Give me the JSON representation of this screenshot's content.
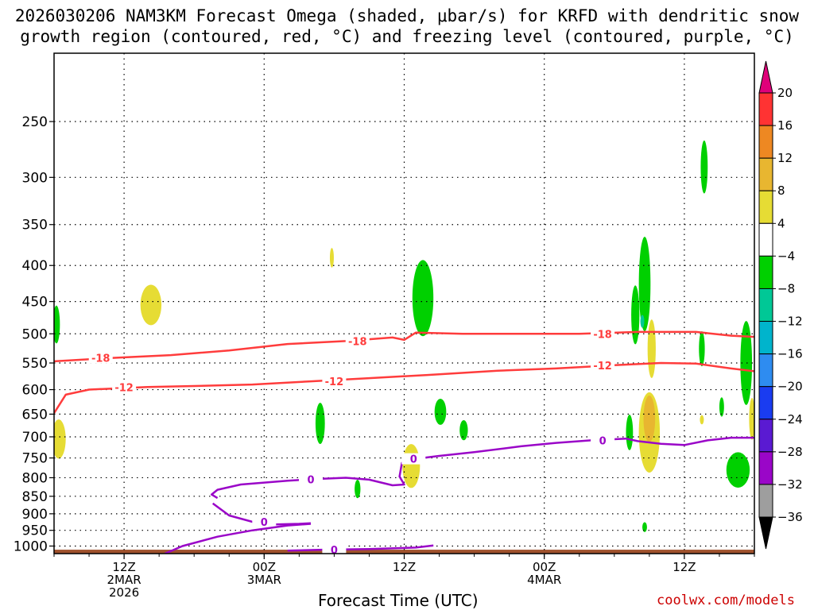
{
  "title": {
    "line1": "2026030206 NAM3KM Forecast Omega (shaded, μbar/s) for KRFD with dendritic snow",
    "line2": "growth region (contoured, red, °C) and freezing level (contoured, purple, °C)"
  },
  "credit": "coolwx.com/models",
  "chart_data": {
    "type": "time-height cross-section",
    "title": "2026030206 NAM3KM Forecast Omega (shaded, μbar/s) for KRFD with dendritic snow growth region (contoured, red, °C) and freezing level (contoured, purple, °C)",
    "xlabel": "Forecast Time (UTC)",
    "ylabel": "",
    "x_range_hours": [
      0,
      60
    ],
    "y_range_hpa": [
      1025,
      200
    ],
    "y_scale": "log-pressure",
    "y_ticks": [
      250,
      300,
      350,
      400,
      450,
      500,
      550,
      600,
      650,
      700,
      750,
      800,
      850,
      900,
      950,
      1000
    ],
    "x_ticks": [
      {
        "hour": 6,
        "lines": [
          "12Z",
          "2MAR",
          "2026"
        ]
      },
      {
        "hour": 18,
        "lines": [
          "00Z",
          "3MAR"
        ]
      },
      {
        "hour": 30,
        "lines": [
          "12Z"
        ]
      },
      {
        "hour": 42,
        "lines": [
          "00Z",
          "4MAR"
        ]
      },
      {
        "hour": 54,
        "lines": [
          "12Z"
        ]
      }
    ],
    "grid": true,
    "colorbar": {
      "levels": [
        20,
        16,
        12,
        8,
        4,
        -4,
        -8,
        -12,
        -16,
        -20,
        -24,
        -28,
        -32,
        -36
      ],
      "colors": [
        "#ff3333",
        "#ee8822",
        "#e8b630",
        "#e6dc34",
        "#ffffff",
        "#00d000",
        "#00c896",
        "#00b4cc",
        "#2e8cf0",
        "#1a3cf0",
        "#5a1ad2",
        "#9a06c8",
        "#9e9e9e"
      ],
      "top_color": "#e0007a",
      "bottom_color": "#000000"
    },
    "contours": [
      {
        "name": "-18",
        "color": "#ff3c3c",
        "label": "-18",
        "points": [
          [
            0,
            547
          ],
          [
            5,
            541
          ],
          [
            10,
            536
          ],
          [
            15,
            528
          ],
          [
            20,
            517
          ],
          [
            25,
            512
          ],
          [
            29,
            506
          ],
          [
            30,
            510
          ],
          [
            31,
            498
          ],
          [
            35,
            500
          ],
          [
            40,
            500
          ],
          [
            45,
            500
          ],
          [
            50,
            497
          ],
          [
            55,
            497
          ],
          [
            58,
            503
          ],
          [
            60,
            505
          ]
        ],
        "labels_at": [
          4,
          26,
          47
        ]
      },
      {
        "name": "-12",
        "color": "#ff3c3c",
        "label": "-12",
        "points": [
          [
            0,
            648
          ],
          [
            1,
            610
          ],
          [
            3,
            600
          ],
          [
            8,
            595
          ],
          [
            12,
            593
          ],
          [
            17,
            590
          ],
          [
            22,
            584
          ],
          [
            27,
            578
          ],
          [
            32,
            572
          ],
          [
            38,
            564
          ],
          [
            43,
            560
          ],
          [
            48,
            554
          ],
          [
            52,
            550
          ],
          [
            55,
            551
          ],
          [
            58,
            560
          ],
          [
            60,
            565
          ]
        ],
        "labels_at": [
          6,
          24,
          47
        ]
      },
      {
        "name": "0-upper",
        "color": "#9a06c8",
        "label": "0",
        "points": [
          [
            14,
            855
          ],
          [
            13.5,
            845
          ],
          [
            14,
            832
          ],
          [
            16,
            818
          ],
          [
            20,
            808
          ],
          [
            22,
            804
          ],
          [
            25,
            800
          ],
          [
            27,
            805
          ],
          [
            29,
            820
          ],
          [
            30,
            818
          ],
          [
            29.6,
            797
          ],
          [
            29.8,
            762
          ],
          [
            31,
            752
          ],
          [
            33,
            745
          ],
          [
            36,
            736
          ],
          [
            40,
            722
          ],
          [
            43,
            714
          ],
          [
            46,
            708
          ],
          [
            49,
            704
          ],
          [
            50,
            710
          ],
          [
            52,
            716
          ],
          [
            54,
            719
          ],
          [
            56,
            708
          ],
          [
            58,
            702
          ],
          [
            60,
            702
          ]
        ],
        "labels_at": [
          22,
          30.8,
          47
        ]
      },
      {
        "name": "0-mid",
        "color": "#9a06c8",
        "label": "0",
        "points": [
          [
            13.6,
            870
          ],
          [
            15,
            905
          ],
          [
            17,
            924
          ],
          [
            19,
            932
          ],
          [
            21,
            930
          ],
          [
            22,
            928
          ]
        ],
        "labels_at": [
          18
        ]
      },
      {
        "name": "0-lower",
        "color": "#9a06c8",
        "label": "0",
        "points": [
          [
            9.5,
            1025
          ],
          [
            11,
            1000
          ],
          [
            14,
            970
          ],
          [
            17,
            950
          ],
          [
            20,
            935
          ],
          [
            22,
            930
          ]
        ],
        "labels_at": []
      },
      {
        "name": "0-bottom",
        "color": "#9a06c8",
        "label": "0",
        "points": [
          [
            20,
            1015
          ],
          [
            23,
            1012
          ],
          [
            27,
            1010
          ],
          [
            31,
            1005
          ],
          [
            32.5,
            998
          ]
        ],
        "labels_at": [
          24
        ]
      }
    ],
    "shaded_regions": [
      {
        "value": 6,
        "color": "#e6dc34",
        "center": [
          8.3,
          455
        ],
        "size": [
          1.8,
          60
        ]
      },
      {
        "value": 6,
        "color": "#e6dc34",
        "center": [
          0.4,
          705
        ],
        "size": [
          1.2,
          90
        ]
      },
      {
        "value": 6,
        "color": "#e6dc34",
        "center": [
          23.8,
          390
        ],
        "size": [
          0.3,
          25
        ]
      },
      {
        "value": 6,
        "color": "#e6dc34",
        "center": [
          30.6,
          770
        ],
        "size": [
          1.5,
          110
        ]
      },
      {
        "value": 6,
        "color": "#e6dc34",
        "center": [
          51.2,
          525
        ],
        "size": [
          0.7,
          100
        ]
      },
      {
        "value": 6,
        "color": "#e6dc34",
        "center": [
          51.0,
          690
        ],
        "size": [
          1.8,
          180
        ]
      },
      {
        "value": 10,
        "color": "#e8b630",
        "center": [
          51.0,
          660
        ],
        "size": [
          1.0,
          100
        ]
      },
      {
        "value": 6,
        "color": "#e6dc34",
        "center": [
          55.5,
          662
        ],
        "size": [
          0.3,
          20
        ]
      },
      {
        "value": 6,
        "color": "#e6dc34",
        "center": [
          59.8,
          660
        ],
        "size": [
          0.5,
          90
        ]
      },
      {
        "value": -6,
        "color": "#00d000",
        "center": [
          0.2,
          485
        ],
        "size": [
          0.6,
          60
        ]
      },
      {
        "value": -6,
        "color": "#00d000",
        "center": [
          31.6,
          445
        ],
        "size": [
          1.8,
          110
        ]
      },
      {
        "value": -6,
        "color": "#00d000",
        "center": [
          22.8,
          670
        ],
        "size": [
          0.8,
          90
        ]
      },
      {
        "value": -6,
        "color": "#00d000",
        "center": [
          33.1,
          645
        ],
        "size": [
          1.0,
          55
        ]
      },
      {
        "value": -6,
        "color": "#00d000",
        "center": [
          35.1,
          685
        ],
        "size": [
          0.7,
          45
        ]
      },
      {
        "value": -6,
        "color": "#00d000",
        "center": [
          26.0,
          830
        ],
        "size": [
          0.5,
          50
        ]
      },
      {
        "value": -6,
        "color": "#00d000",
        "center": [
          50.6,
          425
        ],
        "size": [
          1.0,
          130
        ]
      },
      {
        "value": -6,
        "color": "#00d000",
        "center": [
          49.8,
          470
        ],
        "size": [
          0.7,
          90
        ]
      },
      {
        "value": -6,
        "color": "#00d000",
        "center": [
          49.3,
          690
        ],
        "size": [
          0.6,
          80
        ]
      },
      {
        "value": -6,
        "color": "#00d000",
        "center": [
          50.6,
          940
        ],
        "size": [
          0.4,
          30
        ]
      },
      {
        "value": -6,
        "color": "#00d000",
        "center": [
          55.7,
          290
        ],
        "size": [
          0.6,
          50
        ]
      },
      {
        "value": -6,
        "color": "#00d000",
        "center": [
          55.5,
          525
        ],
        "size": [
          0.5,
          60
        ]
      },
      {
        "value": -6,
        "color": "#00d000",
        "center": [
          57.2,
          635
        ],
        "size": [
          0.4,
          40
        ]
      },
      {
        "value": -6,
        "color": "#00d000",
        "center": [
          59.3,
          550
        ],
        "size": [
          1.0,
          150
        ]
      },
      {
        "value": -6,
        "color": "#00d000",
        "center": [
          58.6,
          780
        ],
        "size": [
          2.0,
          90
        ]
      },
      {
        "value": -10,
        "color": "#00c896",
        "center": [
          50.4,
          480
        ],
        "size": [
          0.2,
          20
        ]
      }
    ],
    "terrain": {
      "color": "#a0522d",
      "top_hpa": 1012
    }
  }
}
